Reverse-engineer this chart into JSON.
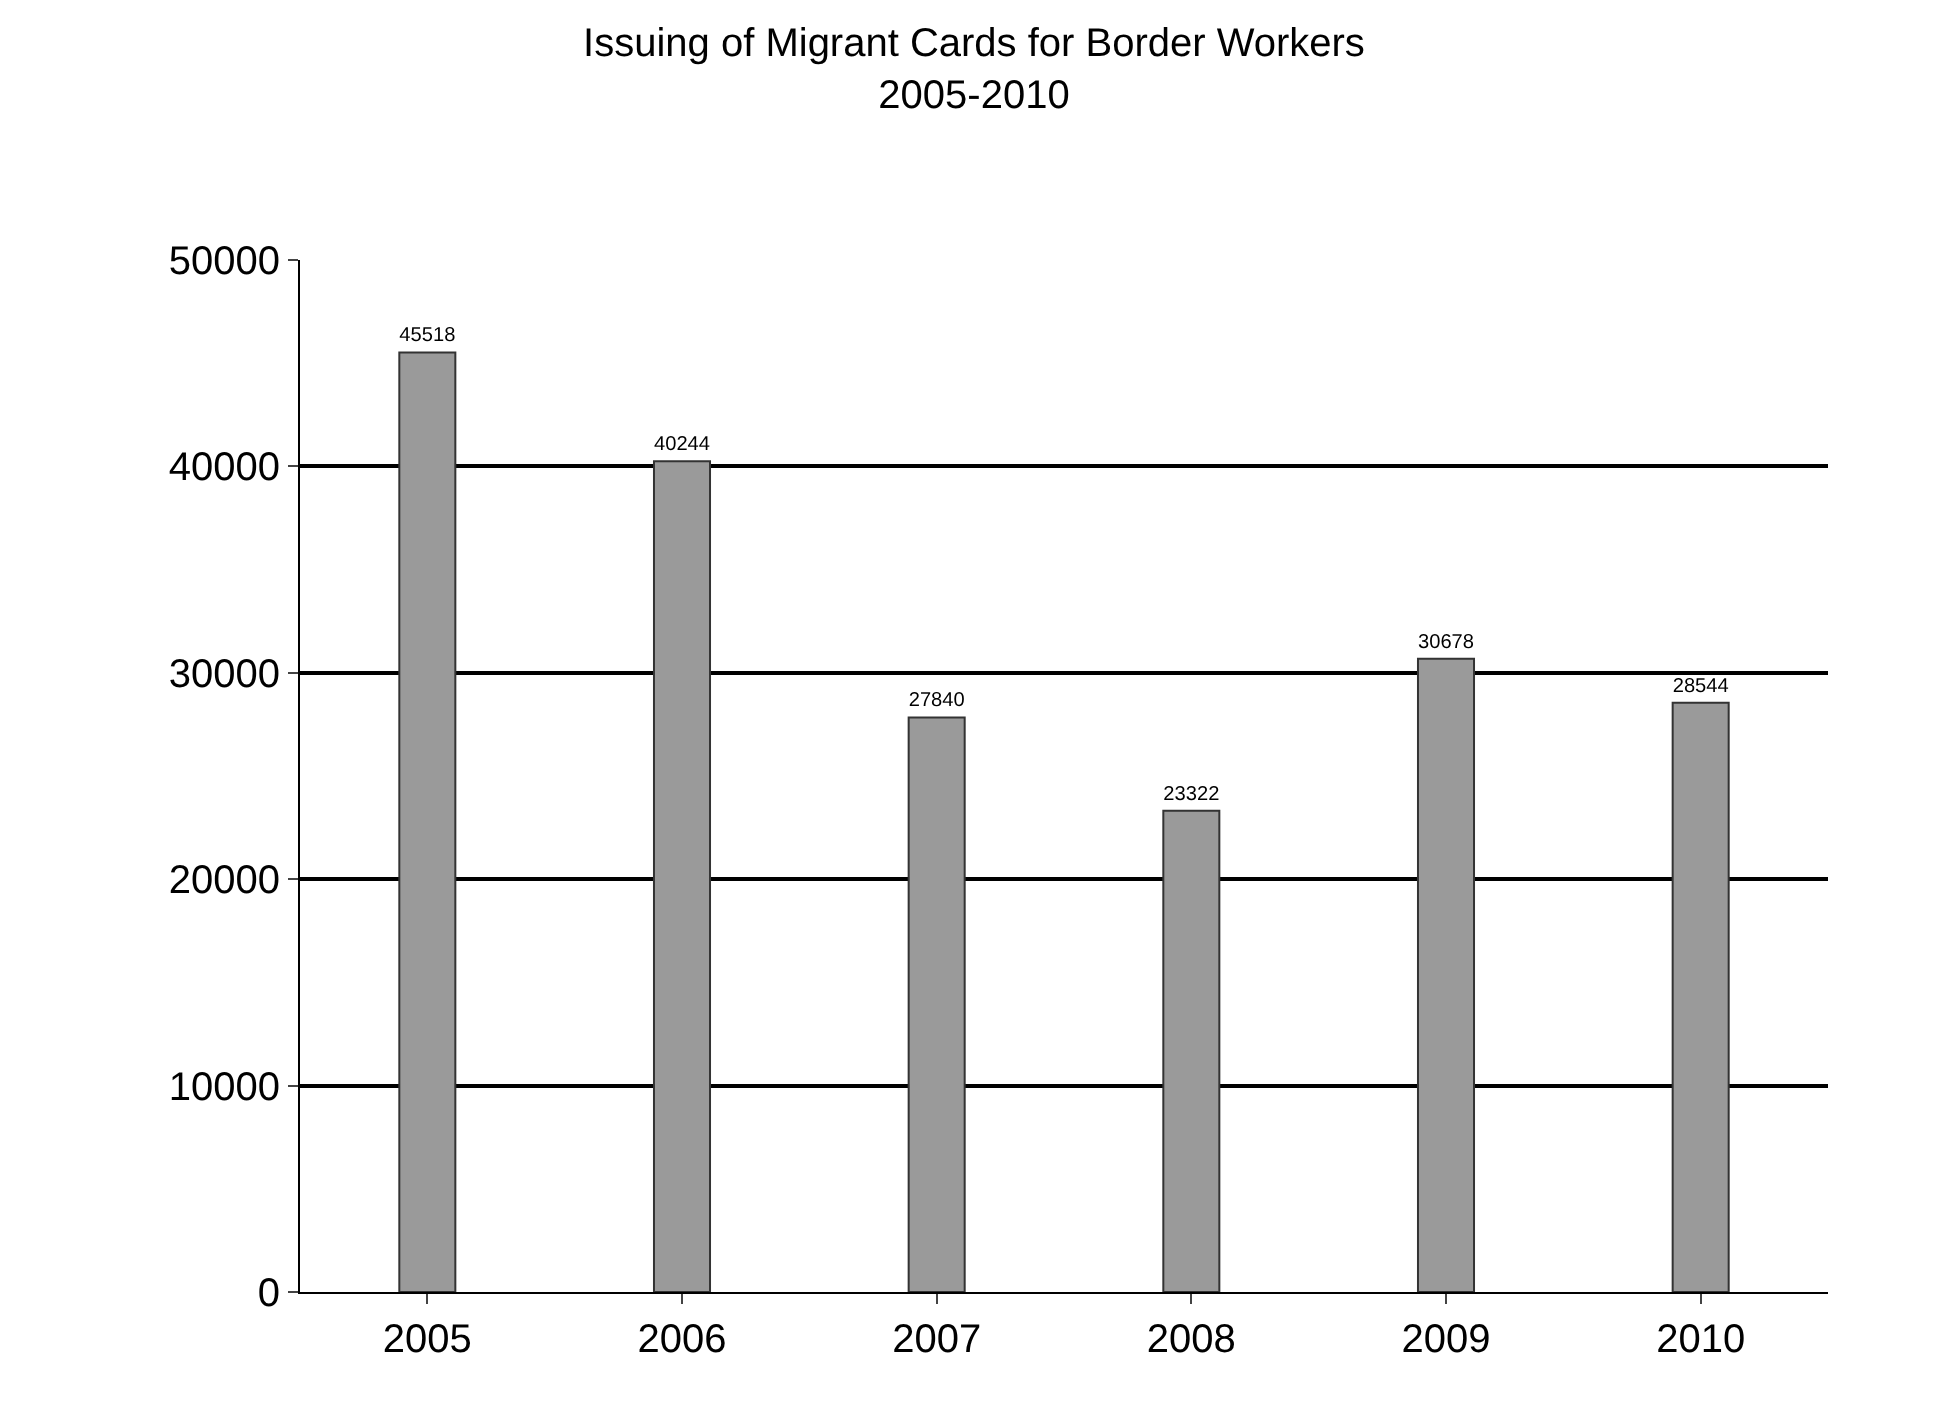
{
  "chart_data": {
    "type": "bar",
    "title": "Issuing of Migrant Cards for Border Workers\n2005-2010",
    "categories": [
      "2005",
      "2006",
      "2007",
      "2008",
      "2009",
      "2010"
    ],
    "values": [
      45518,
      40244,
      27840,
      23322,
      30678,
      28544
    ],
    "color": "#9a9a9a",
    "ylim": [
      0,
      50000
    ],
    "yticks": [
      0,
      10000,
      20000,
      30000,
      40000,
      50000
    ],
    "grid": "y",
    "data_labels": true
  }
}
